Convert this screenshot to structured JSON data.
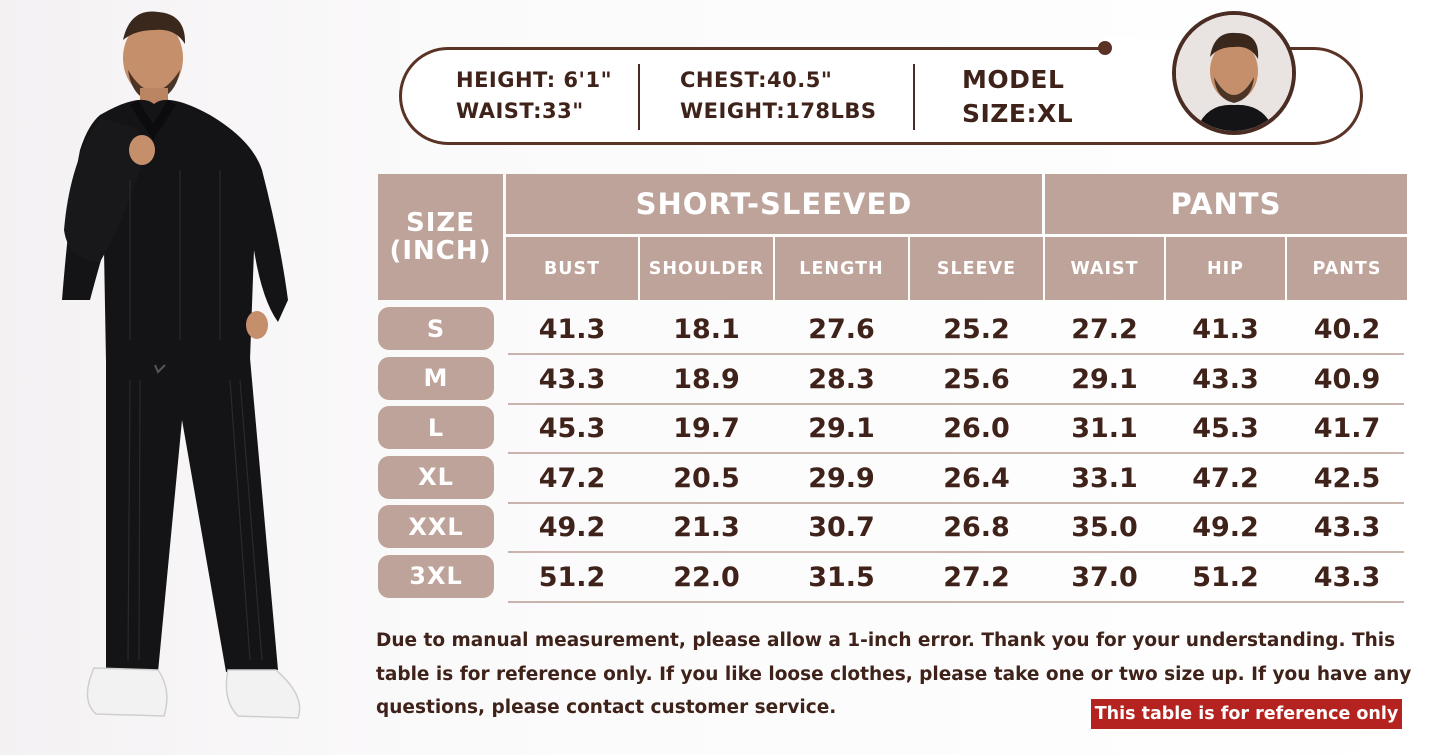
{
  "model_info": {
    "height": "HEIGHT: 6'1\"",
    "waist": "WAIST:33\"",
    "chest": "CHEST:40.5\"",
    "weight": "WEIGHT:178LBS",
    "model_label": "MODEL",
    "size": "SIZE:XL"
  },
  "table": {
    "size_header_line1": "SIZE",
    "size_header_line2": "(INCH)",
    "group_top": "SHORT-SLEEVED",
    "group_pants": "PANTS",
    "columns": [
      "BUST",
      "SHOULDER",
      "LENGTH",
      "SLEEVE",
      "WAIST",
      "HIP",
      "PANTS"
    ],
    "rows": [
      {
        "size": "S",
        "values": [
          "41.3",
          "18.1",
          "27.6",
          "25.2",
          "27.2",
          "41.3",
          "40.2"
        ]
      },
      {
        "size": "M",
        "values": [
          "43.3",
          "18.9",
          "28.3",
          "25.6",
          "29.1",
          "43.3",
          "40.9"
        ]
      },
      {
        "size": "L",
        "values": [
          "45.3",
          "19.7",
          "29.1",
          "26.0",
          "31.1",
          "45.3",
          "41.7"
        ]
      },
      {
        "size": "XL",
        "values": [
          "47.2",
          "20.5",
          "29.9",
          "26.4",
          "33.1",
          "47.2",
          "42.5"
        ]
      },
      {
        "size": "XXL",
        "values": [
          "49.2",
          "21.3",
          "30.7",
          "26.8",
          "35.0",
          "49.2",
          "43.3"
        ]
      },
      {
        "size": "3XL",
        "values": [
          "51.2",
          "22.0",
          "31.5",
          "27.2",
          "37.0",
          "51.2",
          "43.3"
        ]
      }
    ]
  },
  "note": {
    "line1": "Due to manual measurement, please allow a 1-inch error. Thank you for your understanding. This",
    "line2": "table is for reference only. If you like loose clothes, please take one or two size up. If you have any",
    "line3": "questions, please contact customer service."
  },
  "badge": "This table is for reference only",
  "colors": {
    "header_fill": "#bea39a",
    "text": "#3f2219",
    "badge": "#b4231f"
  }
}
